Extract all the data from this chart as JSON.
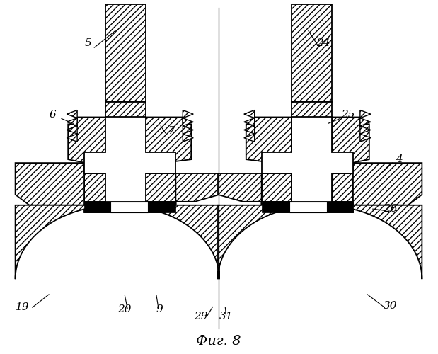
{
  "title": "Фиг. 8",
  "bg_color": "#ffffff",
  "line_color": "#000000",
  "figsize": [
    6.19,
    5.0
  ],
  "dpi": 100,
  "lw": 1.3
}
